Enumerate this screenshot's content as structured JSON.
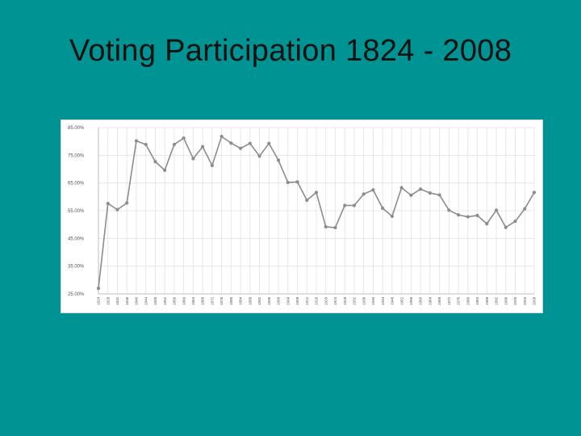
{
  "slide": {
    "title": "Voting Participation 1824 - 2008",
    "background_color": "#009393"
  },
  "chart_data": {
    "type": "line",
    "title": "",
    "xlabel": "",
    "ylabel": "",
    "grid": true,
    "legend": "none",
    "ylim": [
      25,
      85
    ],
    "y_ticks": [
      25,
      35,
      45,
      55,
      65,
      75,
      85
    ],
    "y_tick_labels": [
      "25.00%",
      "35.00%",
      "45.00%",
      "55.00%",
      "65.00%",
      "75.00%",
      "85.00%"
    ],
    "line_color": "#8c8c8c",
    "x": [
      "1824",
      "1828",
      "1832",
      "1836",
      "1840",
      "1844",
      "1848",
      "1852",
      "1856",
      "1860",
      "1864",
      "1868",
      "1872",
      "1876",
      "1880",
      "1884",
      "1888",
      "1892",
      "1896",
      "1900",
      "1904",
      "1908",
      "1912",
      "1916",
      "1920",
      "1924",
      "1928",
      "1932",
      "1936",
      "1940",
      "1944",
      "1948",
      "1952",
      "1956",
      "1960",
      "1964",
      "1968",
      "1972",
      "1976",
      "1980",
      "1984",
      "1988",
      "1992",
      "1996",
      "2000",
      "2004",
      "2008"
    ],
    "series": [
      {
        "values": [
          27.0,
          57.6,
          55.4,
          57.8,
          80.2,
          78.9,
          72.7,
          69.6,
          78.9,
          81.2,
          73.8,
          78.1,
          71.3,
          81.8,
          79.4,
          77.5,
          79.3,
          74.7,
          79.3,
          73.2,
          65.2,
          65.4,
          58.8,
          61.6,
          49.2,
          48.9,
          56.9,
          56.9,
          61.0,
          62.5,
          55.9,
          53.0,
          63.3,
          60.6,
          62.8,
          61.4,
          60.7,
          55.2,
          53.5,
          52.8,
          53.3,
          50.3,
          55.2,
          49.0,
          51.2,
          55.7,
          61.6
        ]
      }
    ]
  }
}
